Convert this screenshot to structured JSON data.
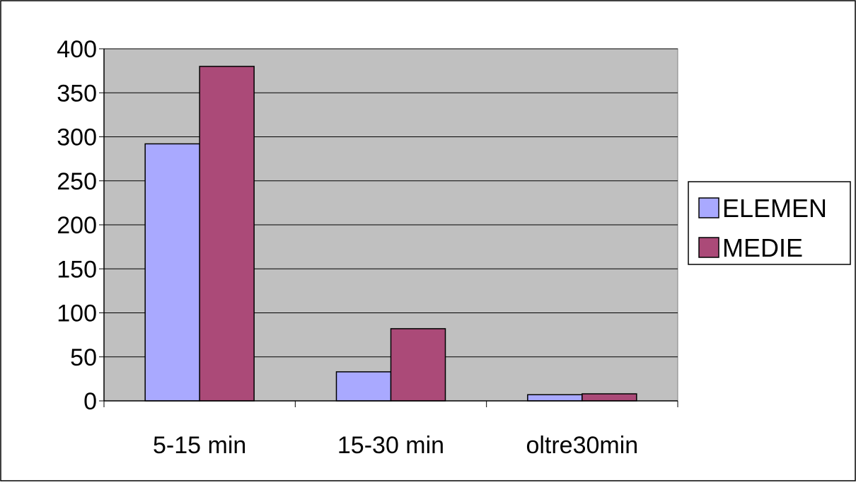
{
  "chart_data": {
    "type": "bar",
    "title": "",
    "xlabel": "",
    "ylabel": "",
    "categories": [
      "5-15 min",
      "15-30 min",
      "oltre30min"
    ],
    "series": [
      {
        "name": "ELEMEN",
        "values": [
          292,
          33,
          7
        ],
        "color": "#a9a9ff"
      },
      {
        "name": "MEDIE",
        "values": [
          380,
          82,
          8
        ],
        "color": "#ab4a78"
      }
    ],
    "ylim": [
      0,
      400
    ],
    "yticks": [
      0,
      50,
      100,
      150,
      200,
      250,
      300,
      350,
      400
    ],
    "grid": true,
    "legend_position": "right",
    "plot_background": "#c0c0c0"
  }
}
